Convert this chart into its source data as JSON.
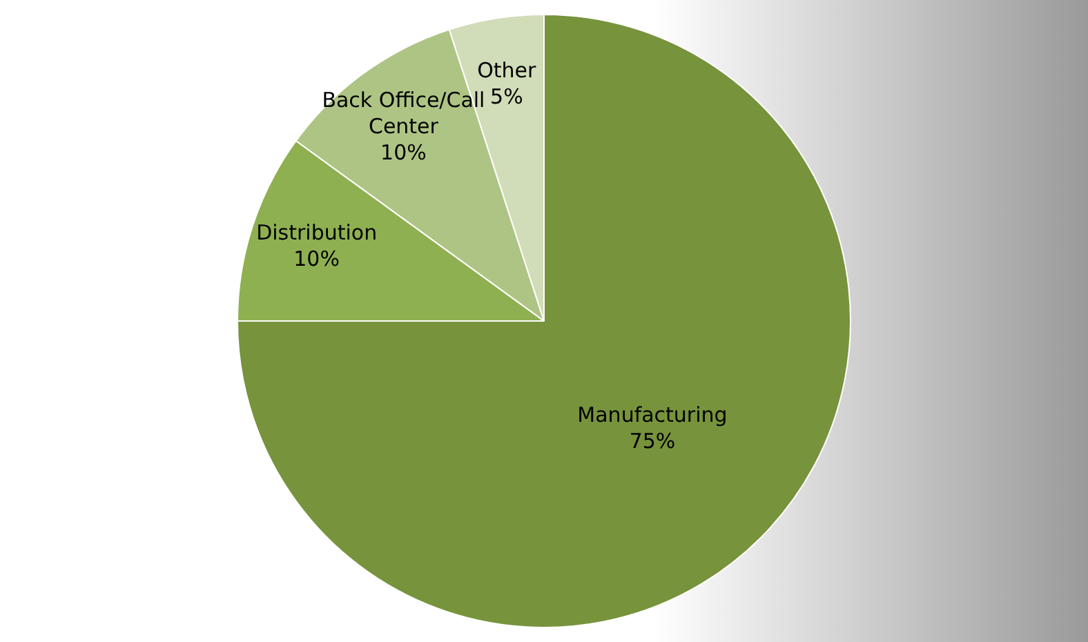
{
  "chart_data": {
    "type": "pie",
    "categories": [
      "Manufacturing",
      "Distribution",
      "Back Office/Call Center",
      "Other"
    ],
    "values": [
      75,
      10,
      10,
      5
    ],
    "colors": [
      "#77933c",
      "#8fb051",
      "#aec484",
      "#d1dcb8"
    ],
    "value_labels": [
      "75%",
      "10%",
      "10%",
      "5%"
    ],
    "legend": false
  }
}
